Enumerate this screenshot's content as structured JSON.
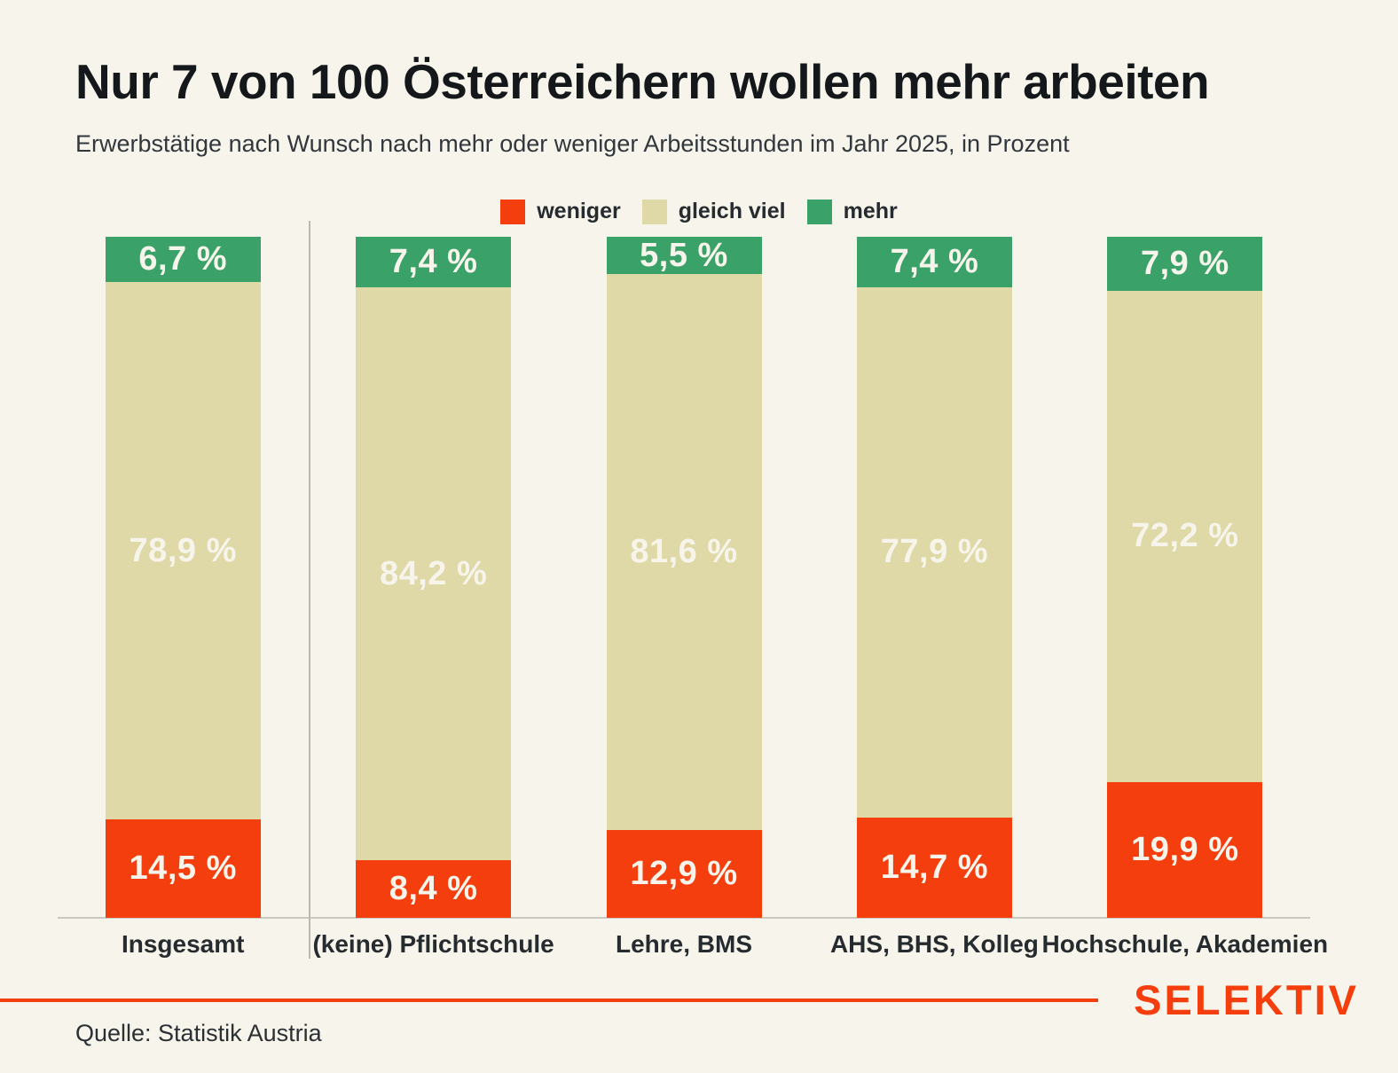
{
  "header": {
    "title": "Nur 7 von 100 Österreichern wollen mehr arbeiten",
    "subtitle": "Erwerbstätige nach Wunsch nach mehr oder weniger Arbeitsstunden im Jahr 2025, in Prozent"
  },
  "legend": {
    "position": "top-center",
    "items": [
      {
        "label": "weniger",
        "color": "#f43e0e"
      },
      {
        "label": "gleich viel",
        "color": "#ded9a6"
      },
      {
        "label": "mehr",
        "color": "#3aa269"
      }
    ]
  },
  "chart_data": {
    "type": "bar",
    "stacked": true,
    "orientation": "vertical",
    "unit": "%",
    "ylim": [
      0,
      100
    ],
    "grid": false,
    "title": "Nur 7 von 100 Österreichern wollen mehr arbeiten",
    "subtitle": "Erwerbstätige nach Wunsch nach mehr oder weniger Arbeitsstunden im Jahr 2025, in Prozent",
    "xlabel": "",
    "ylabel": "",
    "categories": [
      "Insgesamt",
      "(keine) Pflichtschule",
      "Lehre, BMS",
      "AHS, BHS, Kolleg",
      "Hochschule, Akademien"
    ],
    "series": [
      {
        "name": "mehr",
        "stack_position": "top",
        "color": "#3aa269",
        "values": [
          6.7,
          7.4,
          5.5,
          7.4,
          7.9
        ],
        "labels": [
          "6,7 %",
          "7,4 %",
          "5,5 %",
          "7,4 %",
          "7,9 %"
        ]
      },
      {
        "name": "gleich viel",
        "stack_position": "middle",
        "color": "#ded9a6",
        "values": [
          78.9,
          84.2,
          81.6,
          77.9,
          72.2
        ],
        "labels": [
          "78,9 %",
          "84,2 %",
          "81,6 %",
          "77,9 %",
          "72,2 %"
        ]
      },
      {
        "name": "weniger",
        "stack_position": "bottom",
        "color": "#f43e0e",
        "values": [
          14.5,
          8.4,
          12.9,
          14.7,
          19.9
        ],
        "labels": [
          "14,5 %",
          "8,4 %",
          "12,9 %",
          "14,7 %",
          "19,9 %"
        ]
      }
    ],
    "separator_after_category": "Insgesamt"
  },
  "footer": {
    "source": "Quelle: Statistik Austria",
    "brand": "SELEKTIV",
    "accent_color": "#f43e0e"
  },
  "colors": {
    "background": "#f7f5eb",
    "text_dark": "#15181b",
    "label_on_bar": "#f7f5eb",
    "divider": "#b9b9b1",
    "baseline": "#c9c9c1"
  }
}
